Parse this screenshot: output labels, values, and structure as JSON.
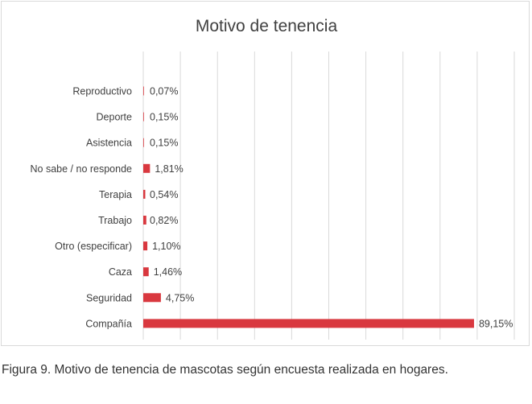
{
  "chart_data": {
    "type": "bar",
    "orientation": "horizontal",
    "title": "Motivo  de tenencia",
    "categories": [
      "Reproductivo",
      "Deporte",
      "Asistencia",
      "No sabe / no responde",
      "Terapia",
      "Trabajo",
      "Otro (especificar)",
      "Caza",
      "Seguridad",
      "Compañía"
    ],
    "values": [
      0.07,
      0.15,
      0.15,
      1.81,
      0.54,
      0.82,
      1.1,
      1.46,
      4.75,
      89.15
    ],
    "data_labels": [
      "0,07%",
      "0,15%",
      "0,15%",
      "1,81%",
      "0,54%",
      "0,82%",
      "1,10%",
      "1,46%",
      "4,75%",
      "89,15%"
    ],
    "xlim": [
      0,
      100
    ],
    "xlabel": "",
    "ylabel": "",
    "grid": true,
    "legend": "none",
    "bar_color": "#d9383f",
    "grid_color": "#d9d9d9",
    "text_color": "#404040"
  },
  "caption": "Figura 9. Motivo de tenencia de mascotas según encuesta realizada en hogares."
}
